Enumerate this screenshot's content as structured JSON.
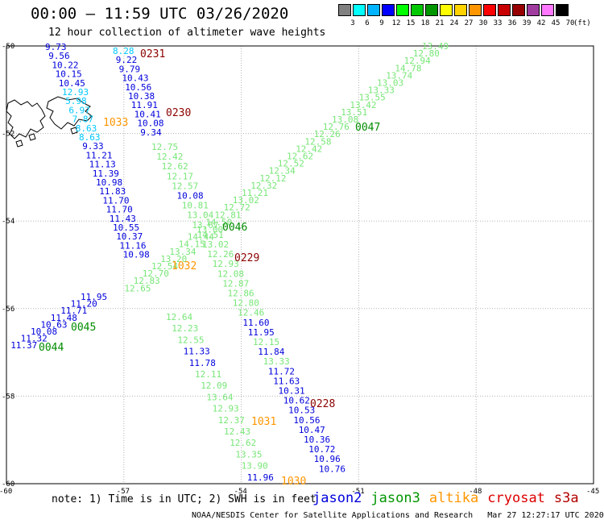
{
  "header": {
    "title": "00:00 – 11:59 UTC 03/26/2020",
    "subtitle": "12 hour collection of altimeter wave heights"
  },
  "legend": {
    "unit": "(ft)",
    "bins": [
      {
        "label": "3",
        "color": "#808080"
      },
      {
        "label": "6",
        "color": "#00ffff"
      },
      {
        "label": "9",
        "color": "#00b4ff"
      },
      {
        "label": "12",
        "color": "#0000ff"
      },
      {
        "label": "15",
        "color": "#00ff00"
      },
      {
        "label": "18",
        "color": "#00c800"
      },
      {
        "label": "21",
        "color": "#009600"
      },
      {
        "label": "24",
        "color": "#ffff00"
      },
      {
        "label": "27",
        "color": "#ffd200"
      },
      {
        "label": "30",
        "color": "#ff9600"
      },
      {
        "label": "33",
        "color": "#ff0000"
      },
      {
        "label": "36",
        "color": "#c80000"
      },
      {
        "label": "39",
        "color": "#960000"
      },
      {
        "label": "42",
        "color": "#a03ca0"
      },
      {
        "label": "45",
        "color": "#ff78ff"
      },
      {
        "label": "70",
        "color": "#000000"
      }
    ]
  },
  "map": {
    "lat_labels": [
      "-50",
      "-52",
      "-54",
      "-56",
      "-58",
      "-60"
    ],
    "lon_labels": [
      "-60",
      "-57",
      "-54",
      "-51",
      "-48",
      "-45"
    ],
    "value_colors": {
      "cyan": "#00c8ff",
      "blue": "#0000dc",
      "green": "#78e678"
    },
    "time_colors": {
      "jason2": "#0000dc",
      "jason3": "#008c00",
      "altika": "#ff9600",
      "cryosat": "#8c0000"
    },
    "tracks": [
      {
        "id": "jason2-desc-A",
        "values": [
          "9.73",
          "9.56",
          "10.22",
          "10.15",
          "10.45",
          "12.93",
          "5.98",
          "6.97",
          "7.87",
          "8.63",
          "8.63",
          "9.33",
          "11.21",
          "11.13",
          "11.39",
          "10.98",
          "11.83",
          "11.70",
          "11.70",
          "11.43",
          "10.55",
          "10.37",
          "11.16",
          "10.98"
        ],
        "color": "mixed"
      },
      {
        "id": "jason2-desc-B",
        "values": [
          "8.28",
          "9.22",
          "9.79",
          "10.43",
          "10.56",
          "10.38",
          "11.91",
          "10.41",
          "10.08",
          "9.34"
        ],
        "color": "mixed"
      },
      {
        "id": "jason3-desc",
        "values": [
          "12.75",
          "12.42",
          "12.62",
          "12.17",
          "12.57",
          "10.08",
          "10.81",
          "13.04",
          "13.67",
          "14.51",
          "13.02",
          "12.26",
          "12.93",
          "12.08",
          "12.87",
          "12.86",
          "12.80",
          "12.46",
          "11.60",
          "11.95",
          "12.15",
          "11.84",
          "13.33",
          "11.72",
          "11.63",
          "10.31",
          "10.62",
          "10.53",
          "10.56",
          "10.47",
          "10.36",
          "10.72",
          "10.96",
          "10.76"
        ],
        "color": "mixed"
      },
      {
        "id": "jason3-asc",
        "values": [
          "13.49",
          "12.80",
          "12.94",
          "14.78",
          "13.74",
          "13.03",
          "13.33",
          "13.55",
          "13.42",
          "13.51",
          "13.08",
          "12.76",
          "12.26",
          "12.58",
          "12.42",
          "12.62",
          "12.52",
          "12.34",
          "12.12",
          "12.32",
          "11.21",
          "13.02",
          "12.72",
          "12.81",
          "14.50",
          "13.00",
          "14.44",
          "14.15",
          "13.34",
          "13.20",
          "12.54",
          "12.70",
          "12.83",
          "12.65"
        ],
        "color": "green"
      },
      {
        "id": "jason2-asc",
        "values": [
          "11.95",
          "11.20",
          "11.71",
          "11.48",
          "10.63",
          "10.08",
          "11.32",
          "11.37"
        ],
        "color": "blue"
      },
      {
        "id": "jason3-desc-B",
        "values": [
          "12.64",
          "12.23",
          "12.55",
          "11.33",
          "11.78",
          "12.11",
          "12.09",
          "13.64",
          "12.93",
          "12.37",
          "12.43",
          "12.62",
          "13.35",
          "13.90",
          "11.96"
        ],
        "color": "mixed"
      }
    ],
    "time_labels": [
      {
        "text": "0231",
        "sat": "cryosat"
      },
      {
        "text": "0230",
        "sat": "cryosat"
      },
      {
        "text": "1033",
        "sat": "altika"
      },
      {
        "text": "0047",
        "sat": "jason3"
      },
      {
        "text": "0046",
        "sat": "jason3"
      },
      {
        "text": "0229",
        "sat": "cryosat"
      },
      {
        "text": "1032",
        "sat": "altika"
      },
      {
        "text": "0045",
        "sat": "jason3"
      },
      {
        "text": "0044",
        "sat": "jason3"
      },
      {
        "text": "0228",
        "sat": "cryosat"
      },
      {
        "text": "1031",
        "sat": "altika"
      },
      {
        "text": "1030",
        "sat": "altika"
      }
    ]
  },
  "footer": {
    "note": "note: 1) Time is in UTC; 2) SWH is in feet",
    "satellites": [
      {
        "name": "jason2",
        "color": "#0000dc"
      },
      {
        "name": "jason3",
        "color": "#009600"
      },
      {
        "name": "altika",
        "color": "#ff9600"
      },
      {
        "name": "cryosat",
        "color": "#dc0000"
      },
      {
        "name": "s3a",
        "color": "#b40000"
      }
    ],
    "credit": "NOAA/NESDIS Center for Satellite Applications and Research   Mar 27 12:27:17 UTC 2020"
  }
}
